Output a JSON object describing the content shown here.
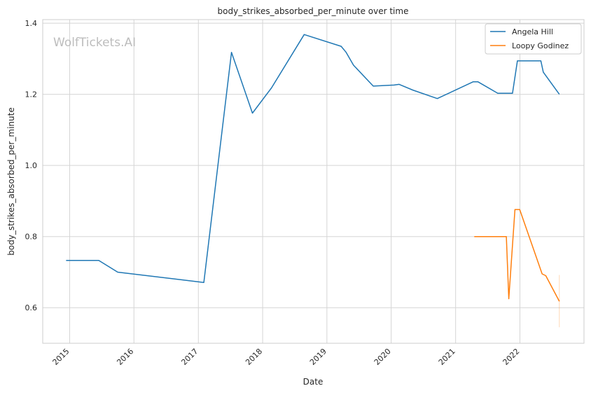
{
  "chart_data": {
    "type": "line",
    "title": "body_strikes_absorbed_per_minute over time",
    "xlabel": "Date",
    "ylabel": "body_strikes_absorbed_per_minute",
    "watermark": "WolfTickets.AI",
    "xlim": [
      "2014-08-01",
      "2022-12-31"
    ],
    "ylim": [
      0.5,
      1.41
    ],
    "x_ticks": [
      "2015",
      "2016",
      "2017",
      "2018",
      "2019",
      "2020",
      "2021",
      "2022"
    ],
    "y_ticks": [
      "0.6",
      "0.8",
      "1.0",
      "1.2",
      "1.4"
    ],
    "grid": true,
    "legend_position": "top-right",
    "series": [
      {
        "name": "Angela Hill",
        "color": "#1f77b4",
        "points": [
          [
            "2014-12-12",
            0.733
          ],
          [
            "2015-06-15",
            0.733
          ],
          [
            "2015-10-01",
            0.7
          ],
          [
            "2017-02-01",
            0.671
          ],
          [
            "2017-07-08",
            1.318
          ],
          [
            "2017-11-04",
            1.147
          ],
          [
            "2018-02-20",
            1.218
          ],
          [
            "2018-08-25",
            1.368
          ],
          [
            "2019-03-23",
            1.335
          ],
          [
            "2019-04-20",
            1.318
          ],
          [
            "2019-06-01",
            1.282
          ],
          [
            "2019-09-21",
            1.223
          ],
          [
            "2020-01-18",
            1.226
          ],
          [
            "2020-02-15",
            1.228
          ],
          [
            "2020-05-02",
            1.212
          ],
          [
            "2020-09-19",
            1.188
          ],
          [
            "2021-04-10",
            1.235
          ],
          [
            "2021-05-08",
            1.235
          ],
          [
            "2021-08-28",
            1.203
          ],
          [
            "2021-11-20",
            1.203
          ],
          [
            "2021-12-18",
            1.294
          ],
          [
            "2022-04-30",
            1.294
          ],
          [
            "2022-05-14",
            1.262
          ],
          [
            "2022-08-13",
            1.2
          ]
        ]
      },
      {
        "name": "Loopy Godinez",
        "color": "#ff7f0e",
        "points": [
          [
            "2021-04-17",
            0.8
          ],
          [
            "2021-10-16",
            0.8
          ],
          [
            "2021-10-30",
            0.625
          ],
          [
            "2021-12-04",
            0.876
          ],
          [
            "2021-12-31",
            0.876
          ],
          [
            "2022-05-07",
            0.695
          ],
          [
            "2022-05-28",
            0.69
          ],
          [
            "2022-08-13",
            0.618
          ]
        ]
      }
    ],
    "error_bar": {
      "series": "Loopy Godinez",
      "x": "2022-08-13",
      "low": 0.545,
      "high": 0.692,
      "color": "#ff7f0e"
    }
  }
}
